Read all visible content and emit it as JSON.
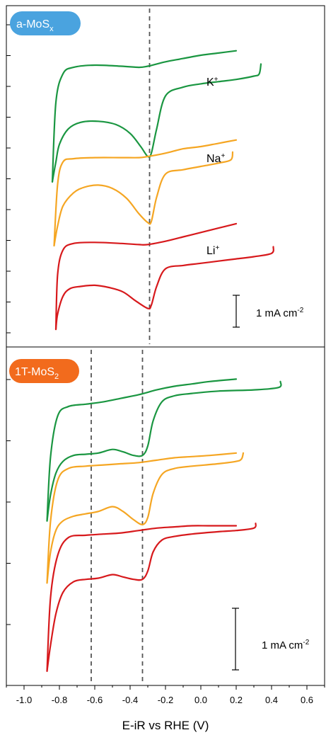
{
  "chart_data": {
    "type": "line",
    "xlabel": "E-iR vs RHE (V)",
    "xlim": [
      -1.1,
      0.7
    ],
    "xticks": [
      -1.0,
      -0.8,
      -0.6,
      -0.4,
      -0.2,
      0.0,
      0.2,
      0.4,
      0.6
    ],
    "xtick_labels": [
      "-1.0",
      "-0.8",
      "-0.6",
      "-0.4",
      "-0.2",
      "0.0",
      "0.2",
      "0.4",
      "0.6"
    ],
    "colors": {
      "K+": "#1a9641",
      "Na+": "#f5a623",
      "Li+": "#d7191c",
      "badge_a": "#4aa3df",
      "badge_b": "#f26b1d",
      "dashed": "#555555"
    },
    "panels": [
      {
        "badge": "a-MoS",
        "badge_sub": "x",
        "dashed_lines_x": [
          -0.29
        ],
        "scalebar_label": "1 mA cm",
        "scalebar_sup": "-2",
        "series": [
          {
            "name": "K+",
            "label_main": "K",
            "label_sup": "+",
            "color": "#1a9641",
            "upper": {
              "x": [
                -0.84,
                -0.82,
                -0.78,
                -0.72,
                -0.6,
                -0.45,
                -0.35,
                -0.3,
                -0.2,
                -0.1,
                0.0,
                0.1,
                0.2
              ],
              "y": [
                0.0,
                3.6,
                4.9,
                5.2,
                5.3,
                5.25,
                5.2,
                5.25,
                5.45,
                5.6,
                5.75,
                5.85,
                5.95
              ]
            },
            "lower": {
              "x": [
                -0.84,
                -0.82,
                -0.8,
                -0.75,
                -0.68,
                -0.58,
                -0.48,
                -0.4,
                -0.34,
                -0.3,
                -0.28,
                -0.25,
                -0.2,
                -0.1,
                0.0,
                0.1,
                0.2,
                0.3,
                0.33,
                0.34
              ],
              "y": [
                0.0,
                0.9,
                1.7,
                2.4,
                2.7,
                2.75,
                2.6,
                2.2,
                1.6,
                1.15,
                1.3,
                2.4,
                3.9,
                4.3,
                4.45,
                4.55,
                4.65,
                4.8,
                4.9,
                5.35
              ]
            }
          },
          {
            "name": "Na+",
            "label_main": "Na",
            "label_sup": "+",
            "color": "#f5a623",
            "upper": {
              "x": [
                -0.83,
                -0.81,
                -0.78,
                -0.72,
                -0.6,
                -0.45,
                -0.35,
                -0.3,
                -0.2,
                -0.1,
                0.0,
                0.1,
                0.2
              ],
              "y": [
                -2.9,
                -0.1,
                0.9,
                1.05,
                1.1,
                1.1,
                1.1,
                1.15,
                1.3,
                1.5,
                1.6,
                1.75,
                1.9
              ]
            },
            "lower": {
              "x": [
                -0.83,
                -0.81,
                -0.78,
                -0.72,
                -0.66,
                -0.58,
                -0.5,
                -0.42,
                -0.35,
                -0.3,
                -0.28,
                -0.25,
                -0.2,
                -0.1,
                0.0,
                0.1,
                0.17,
                0.18
              ],
              "y": [
                -2.9,
                -2.0,
                -1.1,
                -0.5,
                -0.25,
                -0.15,
                -0.3,
                -0.75,
                -1.45,
                -1.85,
                -1.8,
                -0.7,
                0.35,
                0.55,
                0.7,
                0.85,
                1.0,
                1.35
              ]
            }
          },
          {
            "name": "Li+",
            "label_main": "Li",
            "label_sup": "+",
            "color": "#d7191c",
            "upper": {
              "x": [
                -0.82,
                -0.81,
                -0.78,
                -0.72,
                -0.6,
                -0.45,
                -0.35,
                -0.3,
                -0.2,
                -0.1,
                0.0,
                0.1,
                0.2
              ],
              "y": [
                -6.7,
                -4.2,
                -3.1,
                -2.8,
                -2.75,
                -2.8,
                -2.85,
                -2.85,
                -2.7,
                -2.5,
                -2.3,
                -2.1,
                -1.9
              ]
            },
            "lower": {
              "x": [
                -0.82,
                -0.81,
                -0.78,
                -0.74,
                -0.68,
                -0.6,
                -0.52,
                -0.44,
                -0.37,
                -0.3,
                -0.28,
                -0.25,
                -0.2,
                -0.1,
                0.0,
                0.1,
                0.2,
                0.3,
                0.4,
                0.41
              ],
              "y": [
                -6.7,
                -6.0,
                -5.2,
                -4.85,
                -4.75,
                -4.7,
                -4.8,
                -5.0,
                -5.4,
                -5.75,
                -5.6,
                -4.75,
                -3.95,
                -3.8,
                -3.7,
                -3.6,
                -3.5,
                -3.4,
                -3.25,
                -2.95
              ]
            }
          }
        ]
      },
      {
        "badge": "1T-MoS",
        "badge_sub": "2",
        "dashed_lines_x": [
          -0.62,
          -0.33
        ],
        "scalebar_label": "1 mA cm",
        "scalebar_sup": "-2",
        "series": [
          {
            "name": "K+",
            "color": "#1a9641",
            "upper": {
              "x": [
                -0.87,
                -0.85,
                -0.81,
                -0.75,
                -0.65,
                -0.55,
                -0.45,
                -0.35,
                -0.25,
                -0.15,
                -0.05,
                0.05,
                0.2
              ],
              "y": [
                -0.3,
                2.4,
                4.1,
                4.5,
                4.6,
                4.7,
                4.85,
                5.0,
                5.2,
                5.35,
                5.45,
                5.55,
                5.65
              ]
            },
            "lower": {
              "x": [
                -0.87,
                -0.85,
                -0.82,
                -0.78,
                -0.72,
                -0.65,
                -0.58,
                -0.5,
                -0.44,
                -0.38,
                -0.33,
                -0.3,
                -0.27,
                -0.22,
                -0.15,
                -0.05,
                0.1,
                0.3,
                0.44,
                0.45
              ],
              "y": [
                -0.3,
                0.8,
                1.7,
                2.2,
                2.45,
                2.5,
                2.55,
                2.7,
                2.6,
                2.45,
                2.45,
                2.85,
                3.9,
                4.7,
                4.95,
                5.05,
                5.15,
                5.2,
                5.3,
                5.55
              ]
            }
          },
          {
            "name": "Na+",
            "color": "#f5a623",
            "upper": {
              "x": [
                -0.87,
                -0.85,
                -0.81,
                -0.75,
                -0.65,
                -0.55,
                -0.45,
                -0.35,
                -0.25,
                -0.15,
                -0.05,
                0.05,
                0.2
              ],
              "y": [
                -2.9,
                -0.3,
                1.4,
                1.9,
                2.0,
                2.05,
                2.1,
                2.15,
                2.25,
                2.35,
                2.4,
                2.45,
                2.55
              ]
            },
            "lower": {
              "x": [
                -0.87,
                -0.85,
                -0.82,
                -0.78,
                -0.72,
                -0.65,
                -0.58,
                -0.5,
                -0.44,
                -0.38,
                -0.33,
                -0.3,
                -0.27,
                -0.22,
                -0.15,
                -0.05,
                0.1,
                0.2,
                0.23,
                0.24
              ],
              "y": [
                -2.9,
                -1.6,
                -0.7,
                -0.3,
                -0.1,
                0.0,
                0.1,
                0.3,
                0.1,
                -0.25,
                -0.45,
                -0.15,
                0.85,
                1.65,
                1.9,
                2.0,
                2.1,
                2.2,
                2.3,
                2.55
              ]
            }
          },
          {
            "name": "Li+",
            "color": "#d7191c",
            "upper": {
              "x": [
                -0.87,
                -0.85,
                -0.81,
                -0.75,
                -0.65,
                -0.55,
                -0.45,
                -0.35,
                -0.25,
                -0.15,
                -0.05,
                0.05,
                0.2
              ],
              "y": [
                -6.6,
                -3.5,
                -1.75,
                -1.0,
                -0.9,
                -0.85,
                -0.8,
                -0.7,
                -0.6,
                -0.55,
                -0.5,
                -0.5,
                -0.5
              ]
            },
            "lower": {
              "x": [
                -0.87,
                -0.85,
                -0.82,
                -0.78,
                -0.72,
                -0.65,
                -0.58,
                -0.5,
                -0.44,
                -0.38,
                -0.33,
                -0.3,
                -0.27,
                -0.22,
                -0.15,
                -0.05,
                0.1,
                0.2,
                0.3,
                0.31
              ],
              "y": [
                -6.6,
                -5.5,
                -4.2,
                -3.3,
                -2.85,
                -2.75,
                -2.7,
                -2.55,
                -2.65,
                -2.75,
                -2.75,
                -2.4,
                -1.6,
                -1.1,
                -0.95,
                -0.85,
                -0.75,
                -0.7,
                -0.6,
                -0.4
              ]
            }
          }
        ]
      }
    ]
  }
}
